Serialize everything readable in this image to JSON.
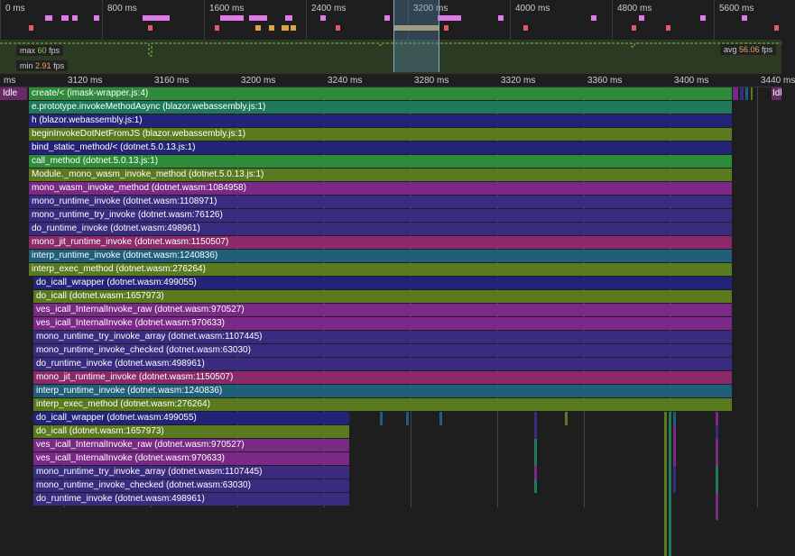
{
  "overview": {
    "ticks": [
      "0 ms",
      "800 ms",
      "1600 ms",
      "2400 ms",
      "3200 ms",
      "4000 ms",
      "4800 ms",
      "5600 ms"
    ],
    "fps_max_label": "max",
    "fps_max_value": "60",
    "fps_min_label": "min",
    "fps_min_value": "2.91",
    "fps_avg_label": "avg",
    "fps_avg_value": "56.06",
    "fps_unit": "fps"
  },
  "ruler": {
    "ticks": [
      "ms",
      "3120 ms",
      "3160 ms",
      "3200 ms",
      "3240 ms",
      "3280 ms",
      "3320 ms",
      "3360 ms",
      "3400 ms",
      "3440 ms"
    ]
  },
  "idle_label": "Idle",
  "idle_label_right": "Idl",
  "colors": {
    "green": "#2e8b3a",
    "teal": "#1f7a5c",
    "navy": "#23237a",
    "olive": "#5a7a1f",
    "purple": "#7a2a86",
    "indigo": "#3a2a80",
    "steel": "#1f5f7a",
    "magenta": "#8a2a6a"
  },
  "frames": [
    {
      "label": "create/< (imask-wrapper.js:4)",
      "color": "green"
    },
    {
      "label": "e.prototype.invokeMethodAsync (blazor.webassembly.js:1)",
      "color": "teal"
    },
    {
      "label": "h (blazor.webassembly.js:1)",
      "color": "navy"
    },
    {
      "label": "beginInvokeDotNetFromJS (blazor.webassembly.js:1)",
      "color": "olive"
    },
    {
      "label": "bind_static_method/< (dotnet.5.0.13.js:1)",
      "color": "navy"
    },
    {
      "label": "call_method (dotnet.5.0.13.js:1)",
      "color": "green"
    },
    {
      "label": "Module._mono_wasm_invoke_method (dotnet.5.0.13.js:1)",
      "color": "olive"
    },
    {
      "label": "mono_wasm_invoke_method (dotnet.wasm:1084958)",
      "color": "purple"
    },
    {
      "label": "mono_runtime_invoke (dotnet.wasm:1108971)",
      "color": "indigo"
    },
    {
      "label": "mono_runtime_try_invoke (dotnet.wasm:76126)",
      "color": "indigo"
    },
    {
      "label": "do_runtime_invoke (dotnet.wasm:498961)",
      "color": "indigo"
    },
    {
      "label": "mono_jit_runtime_invoke (dotnet.wasm:1150507)",
      "color": "magenta"
    },
    {
      "label": "interp_runtime_invoke (dotnet.wasm:1240836)",
      "color": "steel"
    },
    {
      "label": "interp_exec_method (dotnet.wasm:276264)",
      "color": "olive"
    },
    {
      "label": "do_icall_wrapper (dotnet.wasm:499055)",
      "color": "navy"
    },
    {
      "label": "do_icall (dotnet.wasm:1657973)",
      "color": "olive"
    },
    {
      "label": "ves_icall_InternalInvoke_raw (dotnet.wasm:970527)",
      "color": "purple"
    },
    {
      "label": "ves_icall_InternalInvoke (dotnet.wasm:970633)",
      "color": "purple"
    },
    {
      "label": "mono_runtime_try_invoke_array (dotnet.wasm:1107445)",
      "color": "indigo"
    },
    {
      "label": "mono_runtime_invoke_checked (dotnet.wasm:63030)",
      "color": "indigo"
    },
    {
      "label": "do_runtime_invoke (dotnet.wasm:498961)",
      "color": "indigo"
    },
    {
      "label": "mono_jit_runtime_invoke (dotnet.wasm:1150507)",
      "color": "magenta"
    },
    {
      "label": "interp_runtime_invoke (dotnet.wasm:1240836)",
      "color": "steel"
    },
    {
      "label": "interp_exec_method (dotnet.wasm:276264)",
      "color": "olive"
    },
    {
      "label": "do_icall_wrapper (dotnet.wasm:499055)",
      "color": "navy"
    },
    {
      "label": "do_icall (dotnet.wasm:1657973)",
      "color": "olive"
    },
    {
      "label": "ves_icall_InternalInvoke_raw (dotnet.wasm:970527)",
      "color": "purple"
    },
    {
      "label": "ves_icall_InternalInvoke (dotnet.wasm:970633)",
      "color": "purple"
    },
    {
      "label": "mono_runtime_try_invoke_array (dotnet.wasm:1107445)",
      "color": "indigo"
    },
    {
      "label": "mono_runtime_invoke_checked (dotnet.wasm:63030)",
      "color": "indigo"
    },
    {
      "label": "do_runtime_invoke (dotnet.wasm:498961)",
      "color": "indigo"
    }
  ]
}
